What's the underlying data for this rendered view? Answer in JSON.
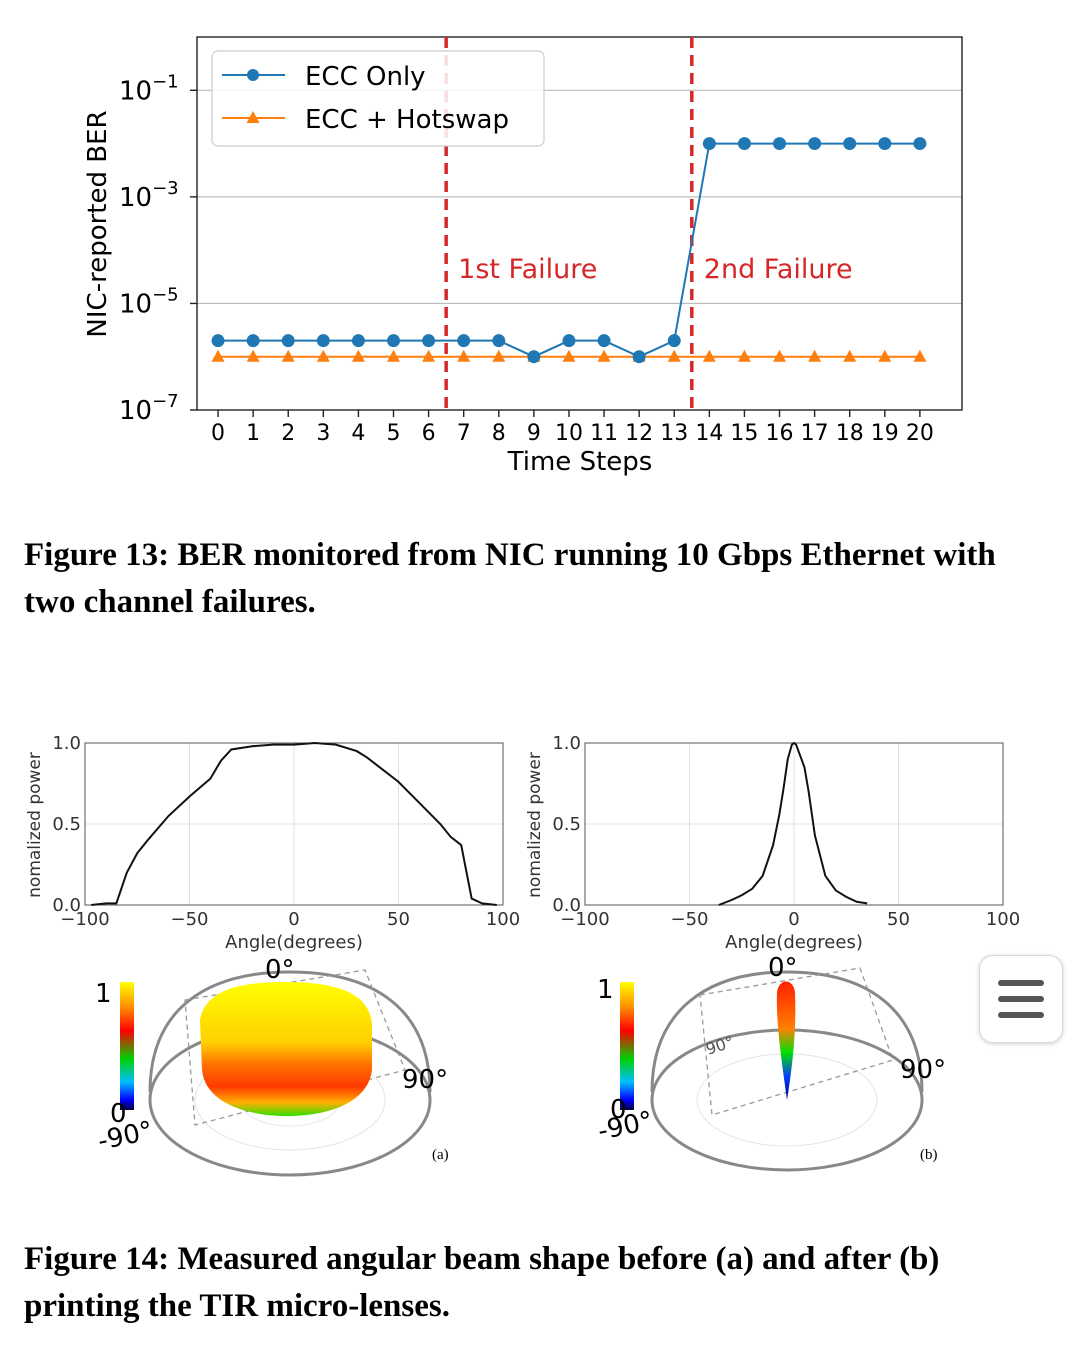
{
  "figure13": {
    "caption": "Figure 13: BER monitored from NIC running 10 Gbps Ethernet with two channel failures.",
    "chart_data": {
      "type": "line",
      "xlabel": "Time Steps",
      "ylabel": "NIC-reported BER",
      "yscale": "log",
      "xlim": [
        -0.6,
        21.2
      ],
      "ylim": [
        1e-07,
        1
      ],
      "x": [
        0,
        1,
        2,
        3,
        4,
        5,
        6,
        7,
        8,
        9,
        10,
        11,
        12,
        13,
        14,
        15,
        16,
        17,
        18,
        19,
        20
      ],
      "x_ticks": [
        "0",
        "1",
        "2",
        "3",
        "4",
        "5",
        "6",
        "7",
        "8",
        "9",
        "10",
        "11",
        "12",
        "13",
        "14",
        "15",
        "16",
        "17",
        "18",
        "19",
        "20"
      ],
      "y_ticks": [
        {
          "value": 0.1,
          "base": "10",
          "exp": "−1"
        },
        {
          "value": 0.001,
          "base": "10",
          "exp": "−3"
        },
        {
          "value": 1e-05,
          "base": "10",
          "exp": "−5"
        },
        {
          "value": 1e-07,
          "base": "10",
          "exp": "−7"
        }
      ],
      "grid": "horizontal",
      "legend_position": "top-left",
      "series": [
        {
          "name": "ECC Only",
          "marker": "circle",
          "color": "#1f77b4",
          "values": [
            2e-06,
            2e-06,
            2e-06,
            2e-06,
            2e-06,
            2e-06,
            2e-06,
            2e-06,
            2e-06,
            1e-06,
            2e-06,
            2e-06,
            1e-06,
            2e-06,
            0.01,
            0.01,
            0.01,
            0.01,
            0.01,
            0.01,
            0.01
          ]
        },
        {
          "name": "ECC + Hotswap",
          "marker": "triangle",
          "color": "#ff7f0e",
          "values": [
            1e-06,
            1e-06,
            1e-06,
            1e-06,
            1e-06,
            1e-06,
            1e-06,
            1e-06,
            1e-06,
            1e-06,
            1e-06,
            1e-06,
            1e-06,
            1e-06,
            1e-06,
            1e-06,
            1e-06,
            1e-06,
            1e-06,
            1e-06,
            1e-06
          ]
        }
      ],
      "annotations": [
        {
          "x": 6.5,
          "label": "1st Failure",
          "color": "#d62728"
        },
        {
          "x": 13.5,
          "label": "2nd Failure",
          "color": "#d62728"
        }
      ]
    }
  },
  "figure14": {
    "caption": "Figure 14: Measured angular beam shape before (a) and after (b) printing the TIR micro-lenses.",
    "chart_data": [
      {
        "type": "line",
        "xlabel": "Angle(degrees)",
        "ylabel": "nomalized power",
        "xlim": [
          -100,
          100
        ],
        "ylim": [
          0,
          1
        ],
        "x_ticks": [
          "−100",
          "−50",
          "0",
          "50",
          "100"
        ],
        "y_ticks": [
          "0.0",
          "0.5",
          "1.0"
        ],
        "grid": true,
        "series": [
          {
            "x": [
              -97,
              -90,
              -85,
              -80,
              -75,
              -70,
              -60,
              -50,
              -40,
              -35,
              -30,
              -20,
              -10,
              0,
              10,
              20,
              30,
              35,
              40,
              50,
              60,
              70,
              75,
              80,
              85,
              90,
              97
            ],
            "values": [
              0,
              0.01,
              0.01,
              0.2,
              0.32,
              0.4,
              0.55,
              0.67,
              0.78,
              0.89,
              0.96,
              0.98,
              0.99,
              0.99,
              1.0,
              0.99,
              0.95,
              0.91,
              0.86,
              0.76,
              0.63,
              0.5,
              0.42,
              0.37,
              0.04,
              0.01,
              0
            ]
          }
        ],
        "panel_label": "(a)"
      },
      {
        "type": "line",
        "xlabel": "Angle(degrees)",
        "ylabel": "nomalized power",
        "xlim": [
          -100,
          100
        ],
        "ylim": [
          0,
          1
        ],
        "x_ticks": [
          "−100",
          "−50",
          "0",
          "50",
          "100"
        ],
        "y_ticks": [
          "0.0",
          "0.5",
          "1.0"
        ],
        "grid": true,
        "series": [
          {
            "x": [
              -36,
              -30,
              -25,
              -20,
              -15,
              -10,
              -7,
              -5,
              -3,
              -1,
              0,
              1,
              3,
              5,
              7,
              10,
              15,
              20,
              25,
              30,
              35
            ],
            "values": [
              0,
              0.03,
              0.06,
              0.1,
              0.18,
              0.37,
              0.56,
              0.72,
              0.9,
              0.99,
              1.0,
              0.99,
              0.92,
              0.85,
              0.7,
              0.43,
              0.18,
              0.09,
              0.05,
              0.02,
              0.01
            ]
          }
        ],
        "panel_label": "(b)"
      }
    ],
    "polar_labels": {
      "top": "0°",
      "right": "90°",
      "left": "-90°",
      "inner": "90°",
      "scale_max": "1",
      "scale_min": "0"
    }
  },
  "ui": {
    "menu_button_icon": "hamburger-menu-icon"
  }
}
